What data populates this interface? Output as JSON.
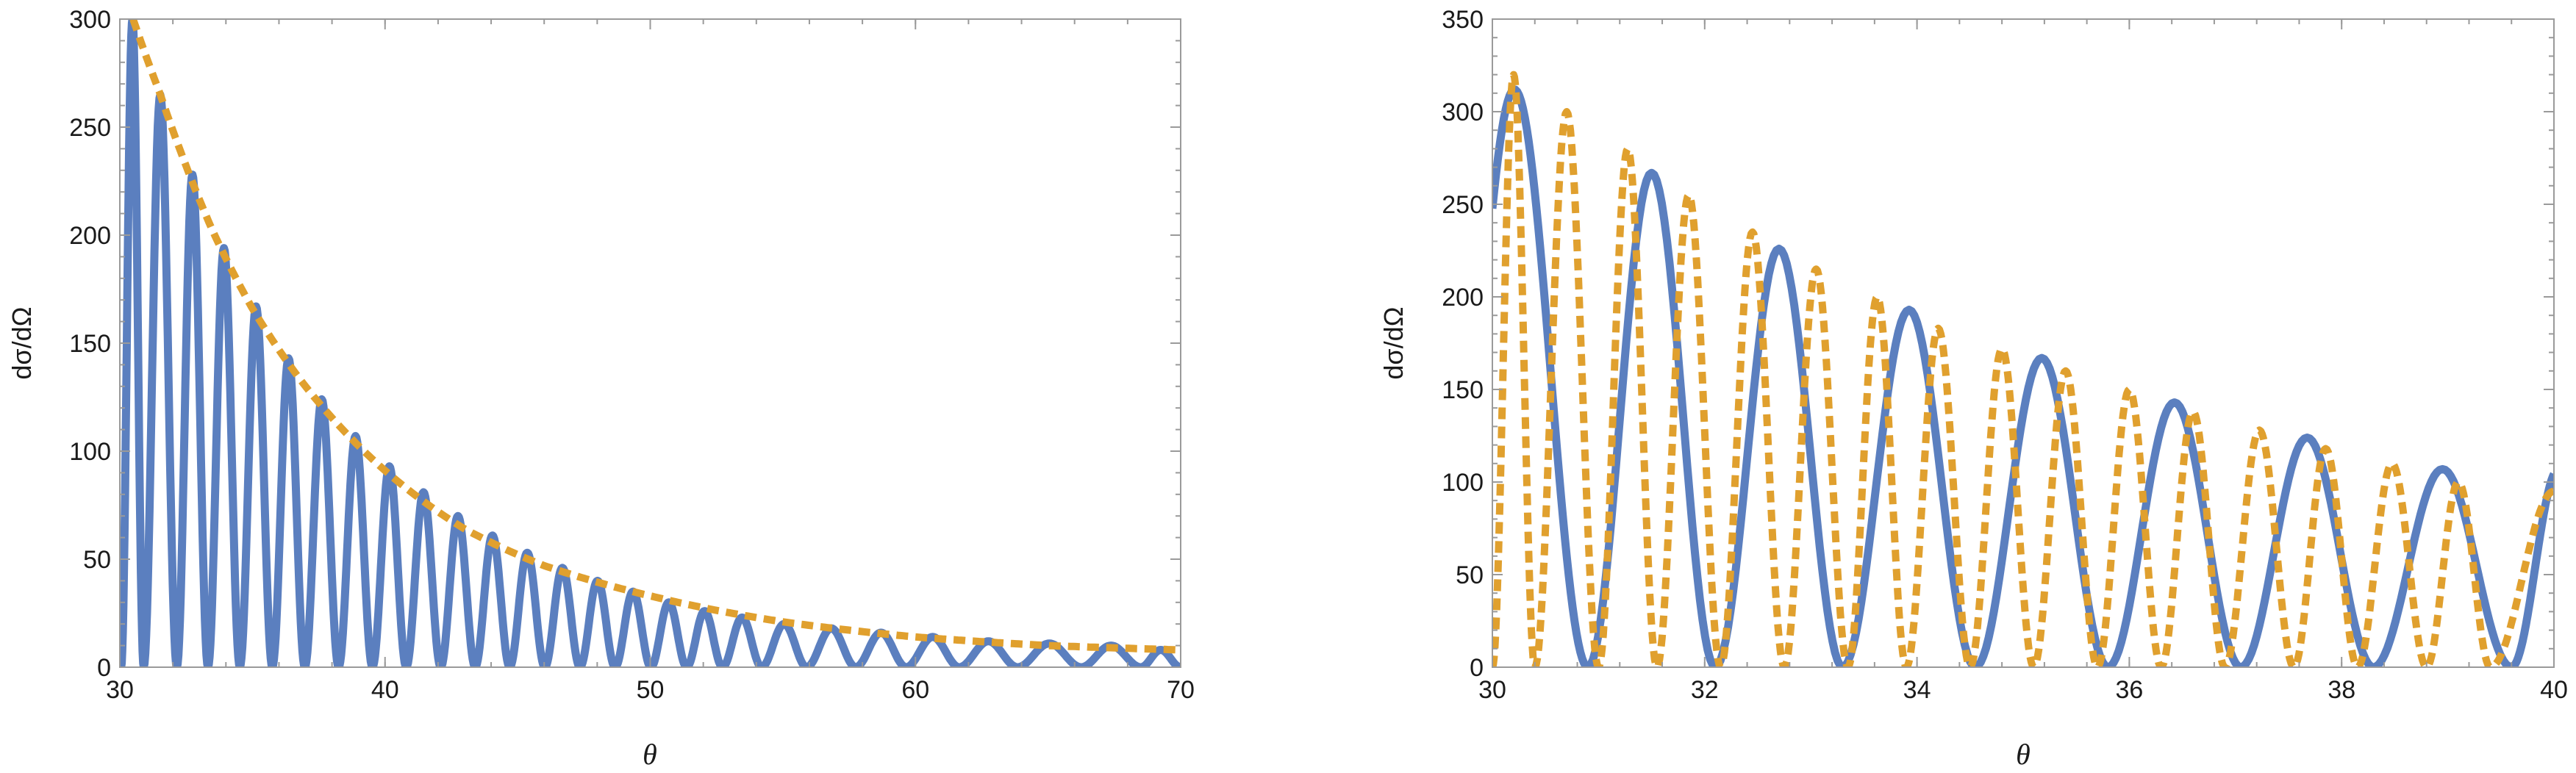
{
  "colors": {
    "series_solid": "#5b7fbf",
    "series_dashed": "#e0a02e",
    "frame": "#9a9a9a",
    "text": "#1a1a1a"
  },
  "chart_data": [
    {
      "type": "line",
      "xlabel": "θ",
      "ylabel": "dσ/dΩ",
      "xlim": [
        30,
        70
      ],
      "ylim": [
        0,
        300
      ],
      "xticks": [
        30,
        40,
        50,
        60,
        70
      ],
      "yticks": [
        0,
        50,
        100,
        150,
        200,
        250,
        300
      ],
      "xtick_labels": [
        "30",
        "40",
        "50",
        "60",
        "70"
      ],
      "ytick_labels": [
        "0",
        "50",
        "100",
        "150",
        "200",
        "250",
        "300"
      ],
      "grid": false,
      "series": [
        {
          "style": "solid",
          "color": "#5b7fbf",
          "x": [
            30.25,
            31.55,
            32.75,
            33.9,
            35.15,
            36.35,
            37.6,
            38.9,
            40.15,
            41.45,
            42.75,
            44.05,
            45.35,
            46.7,
            48.0,
            49.35,
            50.7,
            52.05,
            53.4,
            55.0,
            56.8,
            58.7,
            60.6,
            62.7,
            65.0,
            67.5,
            69.5
          ],
          "peaks": [
            300,
            265,
            228,
            194,
            167,
            143,
            124,
            107,
            93,
            81,
            70,
            61,
            53,
            46,
            40,
            35,
            30,
            26,
            23,
            20,
            18,
            16,
            14,
            12,
            11,
            10,
            8
          ],
          "period_min": 1.2,
          "period_max": 2.6
        },
        {
          "style": "dashed",
          "color": "#e0a02e",
          "x": [
            30.5,
            31.5,
            32.5,
            33.5,
            35,
            37,
            40,
            43,
            46,
            50,
            55,
            60,
            65,
            70
          ],
          "y": [
            300,
            266,
            232,
            202,
            166,
            130,
            91,
            64,
            47,
            33,
            21,
            14,
            10,
            8
          ]
        }
      ]
    },
    {
      "type": "line",
      "xlabel": "θ",
      "ylabel": "dσ/dΩ",
      "xlim": [
        30,
        40
      ],
      "ylim": [
        0,
        350
      ],
      "xticks": [
        30,
        32,
        34,
        36,
        38,
        40
      ],
      "yticks": [
        0,
        50,
        100,
        150,
        200,
        250,
        300,
        350
      ],
      "xtick_labels": [
        "30",
        "32",
        "34",
        "36",
        "38",
        "40"
      ],
      "ytick_labels": [
        "0",
        "50",
        "100",
        "150",
        "200",
        "250",
        "300",
        "350"
      ],
      "grid": false,
      "series": [
        {
          "style": "solid",
          "color": "#5b7fbf",
          "x": [
            30.3,
            31.5,
            32.7,
            33.9,
            35.15,
            36.35,
            37.6,
            38.95
          ],
          "peaks": [
            312,
            267,
            226,
            193,
            167,
            143,
            124,
            107
          ],
          "zeros": [
            30.9,
            32.1,
            33.3,
            34.55,
            35.8,
            37.05,
            38.3,
            39.6
          ]
        },
        {
          "style": "dashed",
          "color": "#e0a02e",
          "x": [
            30.0,
            30.7,
            31.25,
            31.85,
            32.45,
            33.05,
            33.65,
            34.2,
            34.85,
            35.4,
            36.05,
            36.65,
            37.25,
            37.85,
            38.5,
            39.1,
            39.9
          ],
          "peaks": [
            320,
            300,
            280,
            255,
            235,
            215,
            200,
            183,
            172,
            160,
            150,
            138,
            128,
            118,
            110,
            100,
            95
          ],
          "zeros": [
            30.4,
            31.0,
            31.55,
            32.15,
            32.75,
            33.35,
            33.9,
            34.5,
            35.1,
            35.7,
            36.3,
            36.9,
            37.55,
            38.15,
            38.8,
            39.4
          ]
        }
      ]
    }
  ]
}
